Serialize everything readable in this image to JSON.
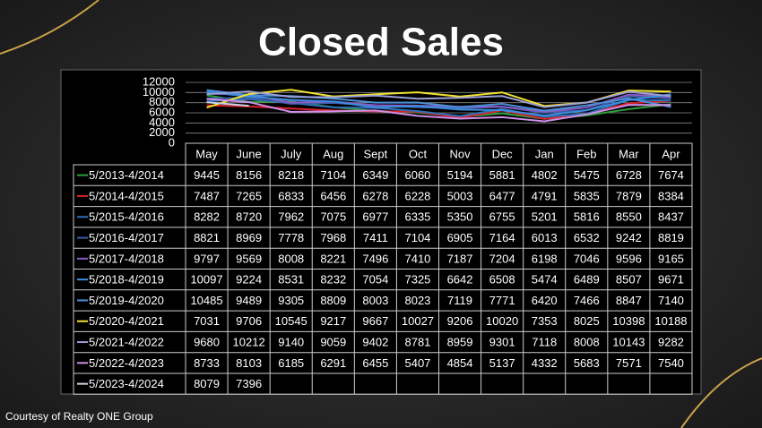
{
  "chart_data": {
    "type": "line",
    "title": "Closed Sales",
    "footer": "Courtesy of Realty ONE Group",
    "categories": [
      "May",
      "June",
      "July",
      "Aug",
      "Sept",
      "Oct",
      "Nov",
      "Dec",
      "Jan",
      "Feb",
      "Mar",
      "Apr"
    ],
    "ylim": [
      0,
      12000
    ],
    "yticks": [
      0,
      2000,
      4000,
      6000,
      8000,
      10000,
      12000
    ],
    "grid": true,
    "series": [
      {
        "name": "5/2013-4/2014",
        "color": "#2e9e3e",
        "values": [
          9445,
          8156,
          8218,
          7104,
          6349,
          6060,
          5194,
          5881,
          4802,
          5475,
          6728,
          7674
        ]
      },
      {
        "name": "5/2014-4/2015",
        "color": "#d8232a",
        "values": [
          7487,
          7265,
          6833,
          6456,
          6278,
          6228,
          5003,
          6477,
          4791,
          5835,
          7879,
          8384
        ]
      },
      {
        "name": "5/2015-4/2016",
        "color": "#2f6fb5",
        "values": [
          8282,
          8720,
          7962,
          7075,
          6977,
          6335,
          5350,
          6755,
          5201,
          5816,
          8550,
          8437
        ]
      },
      {
        "name": "5/2016-4/2017",
        "color": "#3c5fa8",
        "values": [
          8821,
          8969,
          7778,
          7968,
          7411,
          7104,
          6905,
          7164,
          6013,
          6532,
          9242,
          8819
        ]
      },
      {
        "name": "5/2017-4/2018",
        "color": "#8a5cc4",
        "values": [
          9797,
          9569,
          8008,
          8221,
          7496,
          7410,
          7187,
          7204,
          6198,
          7046,
          9596,
          9165
        ]
      },
      {
        "name": "5/2018-4/2019",
        "color": "#3b8de0",
        "values": [
          10097,
          9224,
          8531,
          8232,
          7054,
          7325,
          6642,
          6508,
          5474,
          6489,
          8507,
          9671
        ]
      },
      {
        "name": "5/2019-4/2020",
        "color": "#4a90d9",
        "values": [
          10485,
          9489,
          9305,
          8809,
          8003,
          8023,
          7119,
          7771,
          6420,
          7466,
          8847,
          7140
        ]
      },
      {
        "name": "5/2020-4/2021",
        "color": "#f2e233",
        "values": [
          7031,
          9706,
          10545,
          9217,
          9667,
          10027,
          9206,
          10020,
          7353,
          8025,
          10398,
          10188
        ]
      },
      {
        "name": "5/2021-4/2022",
        "color": "#9b9fd6",
        "values": [
          9680,
          10212,
          9140,
          9059,
          9402,
          8781,
          8959,
          9301,
          7118,
          8008,
          10143,
          9282
        ]
      },
      {
        "name": "5/2022-4/2023",
        "color": "#d08fe8",
        "values": [
          8733,
          8103,
          6185,
          6291,
          6455,
          5407,
          4854,
          5137,
          4332,
          5683,
          7571,
          7540
        ]
      },
      {
        "name": "5/2023-4/2024",
        "color": "#c8d4e6",
        "values": [
          8079,
          7396,
          null,
          null,
          null,
          null,
          null,
          null,
          null,
          null,
          null,
          null
        ]
      }
    ]
  }
}
